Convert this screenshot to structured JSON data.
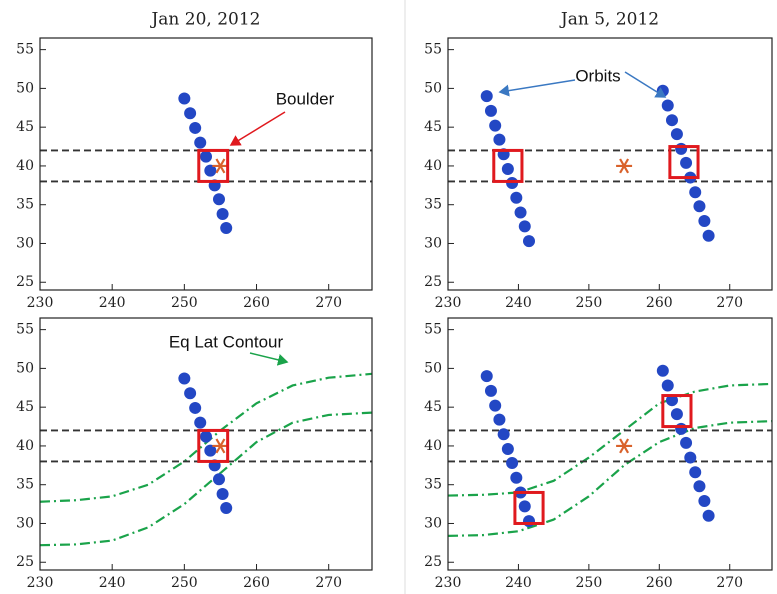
{
  "chart_data": [
    {
      "type": "scatter",
      "title": "Jan 20, 2012",
      "annotation": "Boulder",
      "xlim": [
        230,
        276
      ],
      "ylim": [
        24,
        56.5
      ],
      "xticks": [
        230,
        240,
        250,
        260,
        270
      ],
      "yticks": [
        25,
        30,
        35,
        40,
        45,
        50,
        55
      ],
      "series": [
        {
          "color": "#2347c4",
          "x": [
            250,
            250.8,
            251.5,
            252.2,
            253,
            253.6,
            254.2,
            254.8,
            255.3,
            255.8
          ],
          "values": [
            48.7,
            46.8,
            44.9,
            43,
            41.2,
            39.4,
            37.5,
            35.7,
            33.8,
            32
          ]
        }
      ],
      "hlines": [
        42,
        38
      ],
      "boulder": [
        255,
        40
      ],
      "boulder_color": "#d9622b",
      "boxes": [
        [
          252,
          256,
          38,
          42
        ]
      ],
      "box_color": "#e0191e"
    },
    {
      "type": "scatter",
      "title": "Jan 5, 2012",
      "annotation": "Orbits",
      "xlim": [
        230,
        276
      ],
      "ylim": [
        24,
        56.5
      ],
      "xticks": [
        230,
        240,
        250,
        260,
        270
      ],
      "yticks": [
        25,
        30,
        35,
        40,
        45,
        50,
        55
      ],
      "series": [
        {
          "color": "#2347c4",
          "x": [
            235.5,
            236.1,
            236.7,
            237.3,
            237.9,
            238.5,
            239.1,
            239.7,
            240.3,
            240.9,
            241.5
          ],
          "values": [
            49,
            47.1,
            45.2,
            43.4,
            41.5,
            39.6,
            37.8,
            35.9,
            34,
            32.2,
            30.3
          ]
        },
        {
          "color": "#2347c4",
          "x": [
            260.5,
            261.2,
            261.8,
            262.5,
            263.1,
            263.8,
            264.4,
            265.1,
            265.7,
            266.4,
            267
          ],
          "values": [
            49.7,
            47.8,
            45.9,
            44.1,
            42.2,
            40.4,
            38.5,
            36.6,
            34.8,
            32.9,
            31
          ]
        }
      ],
      "hlines": [
        42,
        38
      ],
      "boulder": [
        255,
        40
      ],
      "boulder_color": "#d9622b",
      "boxes": [
        [
          236.5,
          240.5,
          38,
          42
        ],
        [
          261.5,
          265.5,
          38.5,
          42.5
        ]
      ],
      "box_color": "#e0191e"
    },
    {
      "type": "scatter",
      "annotation": "Eq Lat Contour",
      "xlim": [
        230,
        276
      ],
      "ylim": [
        24,
        56.5
      ],
      "xticks": [
        230,
        240,
        250,
        260,
        270
      ],
      "yticks": [
        25,
        30,
        35,
        40,
        45,
        50,
        55
      ],
      "series": [
        {
          "color": "#2347c4",
          "x": [
            250,
            250.8,
            251.5,
            252.2,
            253,
            253.6,
            254.2,
            254.8,
            255.3,
            255.8
          ],
          "values": [
            48.7,
            46.8,
            44.9,
            43,
            41.2,
            39.4,
            37.5,
            35.7,
            33.8,
            32
          ]
        }
      ],
      "hlines": [
        42,
        38
      ],
      "boulder": [
        255,
        40
      ],
      "boulder_color": "#d9622b",
      "boxes": [
        [
          252,
          256,
          38,
          42
        ]
      ],
      "box_color": "#e0191e",
      "contours": [
        {
          "color": "#1aa34a",
          "x": [
            230,
            235,
            240,
            245,
            250,
            255,
            260,
            265,
            270,
            276
          ],
          "values": [
            32.8,
            33,
            33.5,
            35,
            38,
            42,
            45.5,
            47.8,
            48.8,
            49.3
          ]
        },
        {
          "color": "#1aa34a",
          "x": [
            230,
            235,
            240,
            245,
            250,
            255,
            260,
            265,
            270,
            276
          ],
          "values": [
            27.2,
            27.3,
            27.8,
            29.5,
            32.5,
            36.5,
            40.5,
            43,
            44,
            44.3
          ]
        }
      ]
    },
    {
      "type": "scatter",
      "xlim": [
        230,
        276
      ],
      "ylim": [
        24,
        56.5
      ],
      "xticks": [
        230,
        240,
        250,
        260,
        270
      ],
      "yticks": [
        25,
        30,
        35,
        40,
        45,
        50,
        55
      ],
      "series": [
        {
          "color": "#2347c4",
          "x": [
            235.5,
            236.1,
            236.7,
            237.3,
            237.9,
            238.5,
            239.1,
            239.7,
            240.3,
            240.9,
            241.5
          ],
          "values": [
            49,
            47.1,
            45.2,
            43.4,
            41.5,
            39.6,
            37.8,
            35.9,
            34,
            32.2,
            30.3
          ]
        },
        {
          "color": "#2347c4",
          "x": [
            260.5,
            261.2,
            261.8,
            262.5,
            263.1,
            263.8,
            264.4,
            265.1,
            265.7,
            266.4,
            267
          ],
          "values": [
            49.7,
            47.8,
            45.9,
            44.1,
            42.2,
            40.4,
            38.5,
            36.6,
            34.8,
            32.9,
            31
          ]
        }
      ],
      "hlines": [
        42,
        38
      ],
      "boulder": [
        255,
        40
      ],
      "boulder_color": "#d9622b",
      "boxes": [
        [
          239.5,
          243.5,
          30,
          34
        ],
        [
          260.5,
          264.5,
          42.5,
          46.5
        ]
      ],
      "box_color": "#e0191e",
      "contours": [
        {
          "color": "#1aa34a",
          "x": [
            230,
            235,
            240,
            245,
            250,
            255,
            260,
            265,
            270,
            276
          ],
          "values": [
            33.6,
            33.7,
            34,
            35.5,
            38.5,
            42,
            45.5,
            47,
            47.8,
            48
          ]
        },
        {
          "color": "#1aa34a",
          "x": [
            230,
            235,
            240,
            245,
            250,
            255,
            260,
            265,
            270,
            276
          ],
          "values": [
            28.4,
            28.5,
            29,
            30.5,
            33.5,
            37.5,
            40.5,
            42.3,
            43,
            43.2
          ]
        }
      ]
    }
  ]
}
